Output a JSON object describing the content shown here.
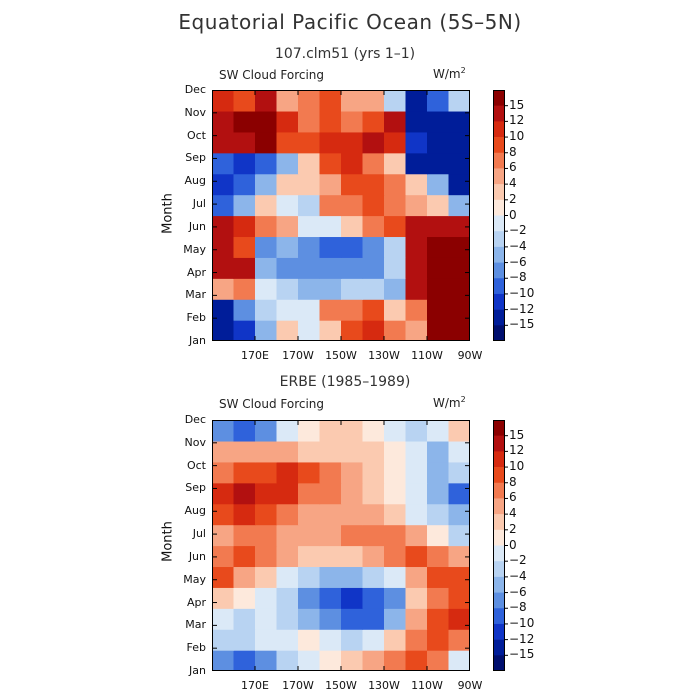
{
  "title": "Equatorial Pacific Ocean (5S–5N)",
  "units_base": "W/m",
  "units_exp": "2",
  "colorbar": {
    "labels": [
      "15",
      "12",
      "10",
      "8",
      "6",
      "4",
      "2",
      "0",
      "−2",
      "−4",
      "−6",
      "−8",
      "−10",
      "−12",
      "−15"
    ],
    "colors": [
      "#8b0000",
      "#b21010",
      "#d62a10",
      "#e84a1c",
      "#f27a50",
      "#f7a584",
      "#fbcab0",
      "#fde9dc",
      "#dbe9f7",
      "#b8d3f2",
      "#8cb5ea",
      "#5d8fe1",
      "#2f62db",
      "#1035c7",
      "#001d99",
      "#000f6e"
    ]
  },
  "chart_data": [
    {
      "type": "heatmap",
      "title": "107.clm51 (yrs 1–1)",
      "variable": "SW Cloud Forcing",
      "units": "W/m²",
      "xlabel": "",
      "ylabel": "Month",
      "x_ticks": [
        "170E",
        "170W",
        "150W",
        "130W",
        "110W",
        "90W"
      ],
      "y_ticks": [
        "Jan",
        "Feb",
        "Mar",
        "Apr",
        "May",
        "Jun",
        "Jul",
        "Aug",
        "Sep",
        "Oct",
        "Nov",
        "Dec"
      ],
      "x_range": [
        "160E",
        "90W"
      ],
      "months": [
        "Jan",
        "Feb",
        "Mar",
        "Apr",
        "May",
        "Jun",
        "Jul",
        "Aug",
        "Sep",
        "Oct",
        "Nov",
        "Dec"
      ],
      "lon_columns": [
        "160E",
        "170E",
        "180",
        "170W",
        "160W",
        "150W",
        "140W",
        "130W",
        "120W",
        "110W",
        "100W",
        "90W"
      ],
      "values": [
        [
          -15,
          -12,
          -6,
          2,
          -2,
          2,
          8,
          10,
          6,
          4,
          16,
          16
        ],
        [
          -15,
          -8,
          -4,
          -2,
          -2,
          6,
          6,
          8,
          2,
          6,
          16,
          16
        ],
        [
          4,
          6,
          -2,
          -4,
          -6,
          -6,
          -4,
          -4,
          -6,
          12,
          16,
          16
        ],
        [
          14,
          12,
          -6,
          -8,
          -8,
          -8,
          -8,
          -8,
          -4,
          12,
          16,
          16
        ],
        [
          12,
          8,
          -8,
          -6,
          -8,
          -10,
          -10,
          -8,
          -4,
          12,
          15,
          16
        ],
        [
          14,
          10,
          6,
          4,
          -2,
          -2,
          2,
          6,
          8,
          12,
          14,
          14
        ],
        [
          -10,
          -6,
          2,
          -2,
          -4,
          6,
          6,
          8,
          6,
          4,
          2,
          -6
        ],
        [
          -12,
          -10,
          -6,
          2,
          2,
          4,
          8,
          8,
          6,
          2,
          -6,
          -15
        ],
        [
          -10,
          -12,
          -10,
          -6,
          2,
          8,
          10,
          6,
          2,
          -15,
          -15,
          -15
        ],
        [
          12,
          14,
          15,
          8,
          8,
          10,
          10,
          14,
          10,
          -12,
          -15,
          -15
        ],
        [
          14,
          15,
          15,
          10,
          6,
          8,
          6,
          8,
          12,
          -15,
          -15,
          -15
        ],
        [
          10,
          8,
          12,
          4,
          6,
          8,
          4,
          4,
          -4,
          -15,
          -10,
          -4
        ]
      ]
    },
    {
      "type": "heatmap",
      "title": "ERBE (1985–1989)",
      "variable": "SW Cloud Forcing",
      "units": "W/m²",
      "xlabel": "",
      "ylabel": "Month",
      "x_ticks": [
        "170E",
        "170W",
        "150W",
        "130W",
        "110W",
        "90W"
      ],
      "y_ticks": [
        "Jan",
        "Feb",
        "Mar",
        "Apr",
        "May",
        "Jun",
        "Jul",
        "Aug",
        "Sep",
        "Oct",
        "Nov",
        "Dec"
      ],
      "x_range": [
        "160E",
        "90W"
      ],
      "months": [
        "Jan",
        "Feb",
        "Mar",
        "Apr",
        "May",
        "Jun",
        "Jul",
        "Aug",
        "Sep",
        "Oct",
        "Nov",
        "Dec"
      ],
      "lon_columns": [
        "160E",
        "170E",
        "180",
        "170W",
        "160W",
        "150W",
        "140W",
        "130W",
        "120W",
        "110W",
        "100W",
        "90W"
      ],
      "values": [
        [
          -8,
          -10,
          -8,
          -4,
          -2,
          0,
          2,
          4,
          6,
          8,
          6,
          -2
        ],
        [
          -4,
          -4,
          -2,
          -2,
          0,
          -2,
          -4,
          -2,
          2,
          6,
          8,
          6
        ],
        [
          -2,
          -4,
          -2,
          -4,
          -6,
          -8,
          -10,
          -10,
          -6,
          4,
          8,
          10
        ],
        [
          2,
          0,
          -2,
          -4,
          -8,
          -10,
          -12,
          -10,
          -8,
          2,
          6,
          8
        ],
        [
          8,
          4,
          2,
          -2,
          -4,
          -6,
          -6,
          -4,
          -2,
          4,
          8,
          8
        ],
        [
          6,
          8,
          6,
          4,
          2,
          2,
          2,
          4,
          6,
          8,
          6,
          4
        ],
        [
          4,
          6,
          6,
          4,
          4,
          4,
          6,
          6,
          6,
          4,
          0,
          -4
        ],
        [
          8,
          10,
          8,
          6,
          4,
          4,
          4,
          4,
          2,
          -2,
          -4,
          -6
        ],
        [
          10,
          12,
          10,
          10,
          6,
          6,
          4,
          2,
          0,
          -2,
          -6,
          -10
        ],
        [
          6,
          8,
          8,
          10,
          8,
          6,
          4,
          2,
          0,
          -2,
          -6,
          -4
        ],
        [
          4,
          4,
          4,
          4,
          2,
          2,
          2,
          2,
          0,
          -2,
          -6,
          -2
        ],
        [
          -8,
          -10,
          -8,
          -2,
          0,
          2,
          2,
          0,
          -2,
          -4,
          -2,
          2
        ]
      ]
    }
  ]
}
